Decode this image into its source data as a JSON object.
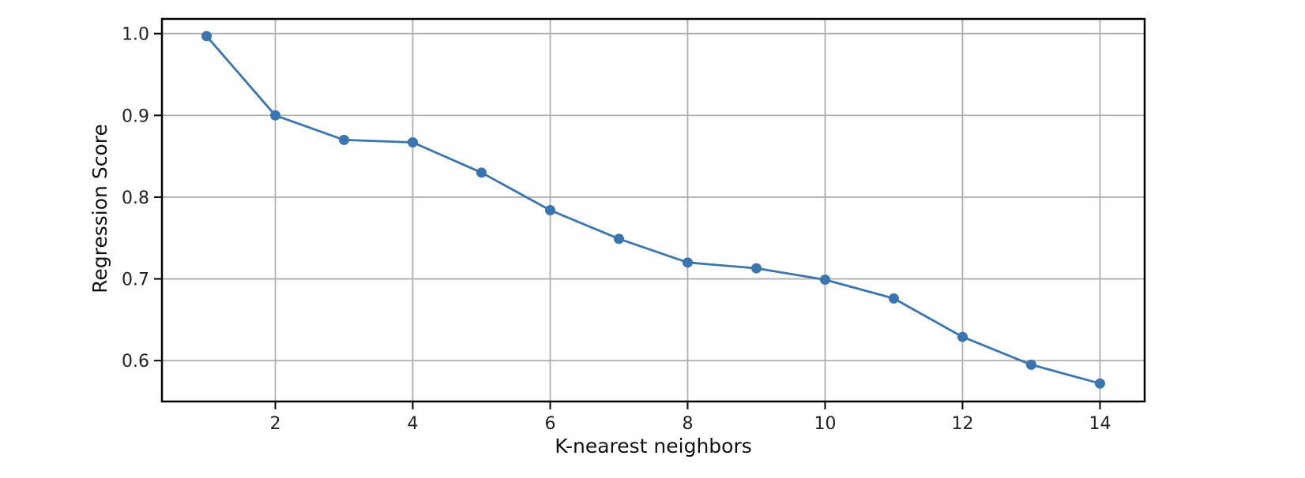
{
  "chart_data": {
    "type": "line",
    "title": "",
    "xlabel": "K-nearest neighbors",
    "ylabel": "Regression Score",
    "xlim": [
      0.35,
      14.65
    ],
    "ylim": [
      0.55,
      1.018
    ],
    "xticks": [
      2,
      4,
      6,
      8,
      10,
      12,
      14
    ],
    "yticks": [
      0.6,
      0.7,
      0.8,
      0.9,
      1.0
    ],
    "xtick_labels": [
      "2",
      "4",
      "6",
      "8",
      "10",
      "12",
      "14"
    ],
    "ytick_labels": [
      "0.6",
      "0.7",
      "0.8",
      "0.9",
      "1.0"
    ],
    "grid": true,
    "legend": "none",
    "series": [
      {
        "color": "#3a75b0",
        "marker": "circle",
        "x": [
          1,
          2,
          3,
          4,
          5,
          6,
          7,
          8,
          9,
          10,
          11,
          12,
          13,
          14
        ],
        "y": [
          0.997,
          0.9,
          0.87,
          0.867,
          0.83,
          0.784,
          0.749,
          0.72,
          0.713,
          0.699,
          0.676,
          0.629,
          0.595,
          0.572
        ]
      }
    ],
    "colors": {
      "grid": "#b0b0b0",
      "frame": "#000000"
    }
  }
}
